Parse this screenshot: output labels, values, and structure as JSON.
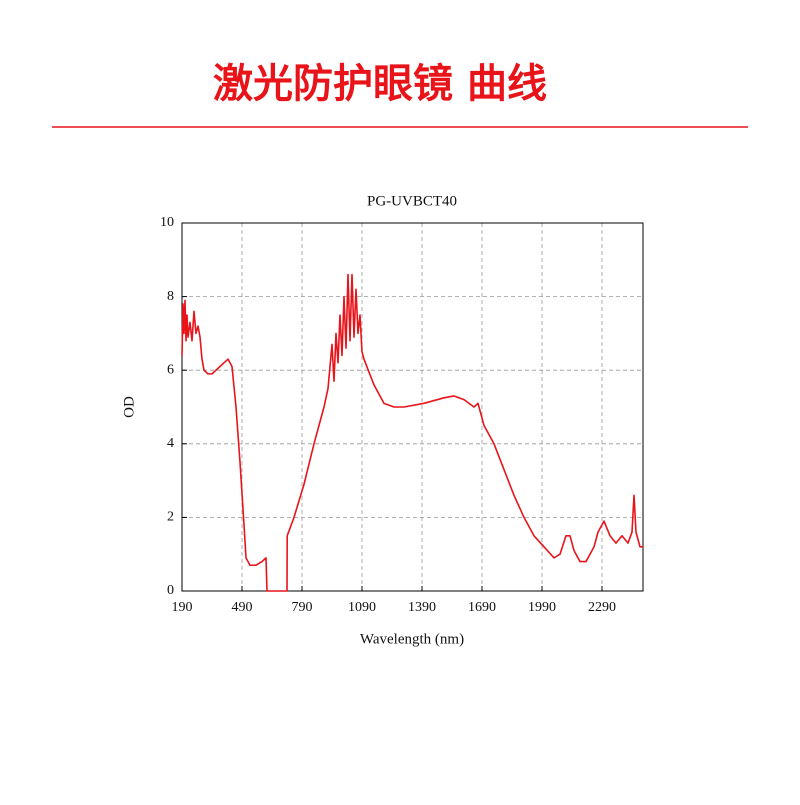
{
  "header": {
    "title": "激光防护眼镜 曲线"
  },
  "chart_data": {
    "type": "line",
    "title": "PG-UVBCT40",
    "x_label": "Wavelength (nm)",
    "y_label": "OD",
    "color": "#e8141a",
    "grid": true,
    "xlim": [
      190,
      2495
    ],
    "xticks": [
      190,
      490,
      790,
      1090,
      1390,
      1690,
      1990,
      2290
    ],
    "ylim": [
      0,
      10
    ],
    "yticks": [
      0,
      2,
      4,
      6,
      8,
      10
    ],
    "x": [
      190,
      195,
      200,
      205,
      210,
      215,
      220,
      230,
      240,
      250,
      260,
      270,
      280,
      290,
      300,
      320,
      340,
      360,
      380,
      400,
      420,
      440,
      460,
      480,
      500,
      510,
      530,
      560,
      590,
      610,
      615,
      700,
      715,
      716,
      750,
      800,
      850,
      900,
      920,
      940,
      950,
      960,
      970,
      980,
      990,
      1000,
      1010,
      1020,
      1030,
      1040,
      1050,
      1060,
      1070,
      1080,
      1090,
      1100,
      1150,
      1200,
      1250,
      1300,
      1400,
      1500,
      1550,
      1600,
      1650,
      1670,
      1700,
      1750,
      1800,
      1850,
      1900,
      1950,
      2000,
      2050,
      2080,
      2110,
      2130,
      2150,
      2180,
      2210,
      2250,
      2270,
      2300,
      2330,
      2360,
      2390,
      2420,
      2440,
      2450,
      2460,
      2480,
      2495
    ],
    "values": [
      6.4,
      7.8,
      7.0,
      7.9,
      6.8,
      7.5,
      6.9,
      7.3,
      6.8,
      7.6,
      7.0,
      7.2,
      6.9,
      6.3,
      6.0,
      5.9,
      5.9,
      6.0,
      6.1,
      6.2,
      6.3,
      6.1,
      5.0,
      3.5,
      1.8,
      0.9,
      0.7,
      0.7,
      0.8,
      0.9,
      0,
      0,
      0,
      1.5,
      2.0,
      2.9,
      4.0,
      5.0,
      5.5,
      6.7,
      5.7,
      7.0,
      6.2,
      7.5,
      6.4,
      8.0,
      6.6,
      8.6,
      6.8,
      8.6,
      6.9,
      8.2,
      7.0,
      7.5,
      6.5,
      6.3,
      5.6,
      5.1,
      5.0,
      5.0,
      5.1,
      5.25,
      5.3,
      5.2,
      5.0,
      5.1,
      4.5,
      4.0,
      3.3,
      2.6,
      2.0,
      1.5,
      1.2,
      0.9,
      1.0,
      1.5,
      1.5,
      1.1,
      0.8,
      0.8,
      1.2,
      1.6,
      1.9,
      1.5,
      1.3,
      1.5,
      1.3,
      1.6,
      2.6,
      1.6,
      1.2,
      1.2
    ]
  }
}
